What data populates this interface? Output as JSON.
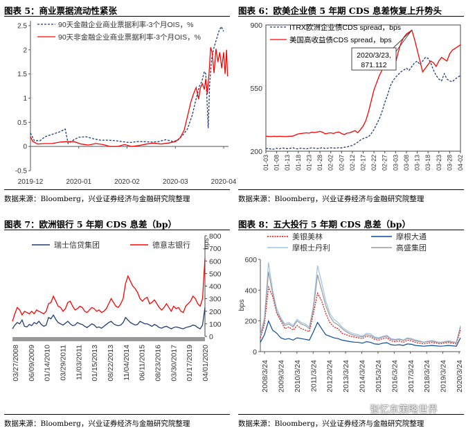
{
  "panels": {
    "p5": {
      "title": "图表 5：商业票据流动性紧张",
      "source": "数据来源：Bloomberg，兴业证券经济与金融研究院整理"
    },
    "p6": {
      "title": "图表 6：欧美企业债 5 年期 CDS 息差恢复上升势头",
      "source": "数据来源：Bloomberg，兴业证券经济与金融研究院整理"
    },
    "p7": {
      "title": "图表 7：欧洲银行 5 年期 CDS 息差（bp）",
      "source": "数据来源：Bloomberg，兴业证券经济与金融研究院整理"
    },
    "p8": {
      "title": "图表 8：五大投行 5 年期 CDS 息差（bp）",
      "source": "数据来源：Bloomberg，兴业证券经济与金融研究院整理"
    }
  },
  "watermark": "张忆东策略世界",
  "colors": {
    "red": "#ff0000",
    "navy": "#1f3b73",
    "blue": "#0b4aa0",
    "lightblue": "#9dc3e6",
    "gray": "#9a9a9a",
    "darkred": "#c00000"
  },
  "chart_data": [
    {
      "id": "p5",
      "type": "line",
      "x_ticks": [
        "2019-12",
        "2020-01",
        "2020-02",
        "2020-03",
        "2020-04"
      ],
      "y_ticks": [
        "-0.5",
        "0",
        "0.5",
        "1",
        "1.5",
        "2",
        "2.5"
      ],
      "ylim": [
        -0.5,
        2.6
      ],
      "xlim": [
        0,
        4.1
      ],
      "series": [
        {
          "name": "90天金融企业商业票据利率-3个月OIS，%",
          "color": "#1f3b73",
          "dash": true,
          "points": [
            [
              0,
              0.28
            ],
            [
              0.08,
              0.12
            ],
            [
              0.2,
              0.12
            ],
            [
              0.3,
              0.2
            ],
            [
              0.45,
              0.25
            ],
            [
              0.6,
              0.3
            ],
            [
              0.72,
              0.36
            ],
            [
              0.78,
              0.06
            ],
            [
              0.9,
              0.14
            ],
            [
              1.0,
              0.19
            ],
            [
              1.15,
              0.2
            ],
            [
              1.3,
              0.16
            ],
            [
              1.45,
              0.13
            ],
            [
              1.6,
              0.13
            ],
            [
              1.75,
              0.12
            ],
            [
              1.9,
              0.1
            ],
            [
              2.05,
              0.08
            ],
            [
              2.2,
              0.1
            ],
            [
              2.35,
              0.1
            ],
            [
              2.5,
              0.09
            ],
            [
              2.65,
              0.1
            ],
            [
              2.8,
              0.14
            ],
            [
              2.95,
              0.1
            ],
            [
              3.05,
              0.13
            ],
            [
              3.15,
              0.23
            ],
            [
              3.25,
              0.36
            ],
            [
              3.35,
              0.65
            ],
            [
              3.42,
              0.95
            ],
            [
              3.5,
              1.25
            ],
            [
              3.55,
              1.35
            ],
            [
              3.6,
              1.55
            ],
            [
              3.63,
              1.5
            ],
            [
              3.66,
              0.85
            ],
            [
              3.68,
              0.38
            ],
            [
              3.71,
              1.3
            ],
            [
              3.75,
              1.8
            ],
            [
              3.8,
              2.05
            ],
            [
              3.86,
              2.25
            ],
            [
              3.9,
              2.38
            ],
            [
              3.95,
              2.48
            ],
            [
              4.0,
              2.38
            ]
          ]
        },
        {
          "name": "90天非金融企业商业票据利率-3个月OIS，%",
          "color": "#ff0000",
          "dash": false,
          "points": [
            [
              0,
              0.2
            ],
            [
              0.05,
              0.1
            ],
            [
              0.15,
              0.05
            ],
            [
              0.3,
              0.06
            ],
            [
              0.45,
              0.06
            ],
            [
              0.6,
              0.09
            ],
            [
              0.75,
              0.1
            ],
            [
              0.9,
              0.1
            ],
            [
              1.05,
              0.05
            ],
            [
              1.2,
              0.03
            ],
            [
              1.35,
              0.06
            ],
            [
              1.5,
              0.04
            ],
            [
              1.65,
              0.0
            ],
            [
              1.8,
              0.0
            ],
            [
              1.95,
              0.04
            ],
            [
              2.1,
              0.0
            ],
            [
              2.25,
              0.02
            ],
            [
              2.4,
              0.05
            ],
            [
              2.55,
              0.07
            ],
            [
              2.7,
              0.05
            ],
            [
              2.85,
              0.07
            ],
            [
              3.0,
              0.1
            ],
            [
              3.1,
              0.18
            ],
            [
              3.18,
              0.33
            ],
            [
              3.25,
              0.62
            ],
            [
              3.32,
              0.92
            ],
            [
              3.38,
              1.1
            ],
            [
              3.43,
              1.22
            ],
            [
              3.48,
              0.98
            ],
            [
              3.52,
              1.22
            ],
            [
              3.56,
              1.3
            ],
            [
              3.6,
              1.18
            ],
            [
              3.63,
              1.4
            ],
            [
              3.66,
              1.08
            ],
            [
              3.7,
              1.55
            ],
            [
              3.73,
              2.05
            ],
            [
              3.76,
              1.95
            ],
            [
              3.8,
              1.52
            ],
            [
              3.84,
              2.02
            ],
            [
              3.88,
              1.75
            ],
            [
              3.92,
              1.95
            ],
            [
              3.96,
              1.62
            ],
            [
              4.0,
              1.95
            ],
            [
              4.03,
              1.5
            ],
            [
              4.06,
              2.0
            ],
            [
              4.08,
              1.45
            ]
          ]
        }
      ]
    },
    {
      "id": "p6",
      "type": "line",
      "x_labels": [
        "01-03",
        "01-08",
        "01-13",
        "01-18",
        "01-23",
        "01-28",
        "02-02",
        "02-07",
        "02-12",
        "02-17",
        "02-22",
        "02-27",
        "03-03",
        "03-08",
        "03-13",
        "03-18",
        "03-23",
        "03-28",
        "04-02"
      ],
      "y_ticks": [
        "200",
        "550",
        "900"
      ],
      "ylim": [
        200,
        900
      ],
      "annotation": {
        "text": [
          "2020/3/23,",
          "871.112"
        ],
        "date": "03-23",
        "value": 871.112
      },
      "series": [
        {
          "name": "ITRX欧洲企业债CDS spread，bps",
          "color": "#1f3b73",
          "dash": true,
          "values": [
            213,
            217,
            210,
            212,
            216,
            213,
            218,
            216,
            214,
            216,
            219,
            214,
            213,
            217,
            215,
            213,
            216,
            219,
            217,
            215,
            216,
            220,
            214,
            217,
            219,
            218,
            216,
            220,
            218,
            222,
            224,
            228,
            232,
            240,
            250,
            262,
            270,
            275,
            280,
            298,
            320,
            350,
            380,
            420,
            470,
            510,
            560,
            590,
            610,
            625,
            640,
            650,
            660,
            648,
            670,
            690,
            700,
            680,
            700,
            720,
            715,
            690,
            650,
            620,
            600,
            590,
            630,
            600,
            590,
            585,
            600,
            610,
            620
          ]
        },
        {
          "name": "美国高收益债CDS spread，bps",
          "color": "#ff0000",
          "dash": false,
          "values": [
            283,
            282,
            281,
            283,
            281,
            283,
            282,
            281,
            282,
            283,
            284,
            290,
            296,
            298,
            300,
            302,
            300,
            305,
            303,
            306,
            310,
            305,
            296,
            300,
            302,
            298,
            304,
            306,
            298,
            292,
            300,
            302,
            308,
            314,
            302,
            320,
            340,
            370,
            420,
            480,
            540,
            580,
            620,
            650,
            700,
            680,
            715,
            720,
            690,
            750,
            800,
            830,
            850,
            860,
            871,
            820,
            760,
            700,
            640,
            660,
            680,
            700,
            690,
            670,
            700,
            720,
            710,
            700,
            740,
            760,
            770,
            780,
            790
          ]
        }
      ]
    },
    {
      "id": "p7",
      "type": "line",
      "x_labels": [
        "03/27/2008",
        "06/09/2009",
        "01/14/2010",
        "03/29/2011",
        "11/03/2011",
        "01/15/2013",
        "08/22/2013",
        "11/04/2014",
        "06/11/2015",
        "08/23/2016",
        "03/30/2017",
        "01/17/2019",
        "04/01/2020"
      ],
      "y_ticks": [
        "0",
        "100",
        "200",
        "300",
        "400",
        "500",
        "600",
        "700",
        "800"
      ],
      "y_unit": "bps",
      "ylim": [
        0,
        800
      ],
      "series": [
        {
          "name": "瑞士信贷集团",
          "color": "#1f3b73",
          "values": [
            60,
            90,
            110,
            100,
            130,
            80,
            75,
            95,
            85,
            110,
            100,
            120,
            95,
            80,
            90,
            150,
            140,
            170,
            135,
            110,
            100,
            90,
            105,
            120,
            100,
            85,
            90,
            110,
            100,
            95,
            80,
            70,
            85,
            100,
            90,
            70,
            75,
            65,
            80,
            95,
            110,
            120,
            100,
            90,
            85,
            90,
            110,
            150,
            130,
            110,
            100,
            90,
            95,
            120,
            110,
            100,
            100,
            90,
            80,
            95,
            85,
            70,
            65,
            75,
            80,
            70,
            60,
            70,
            75,
            70,
            65,
            60,
            70,
            75,
            80,
            90,
            85,
            70,
            60,
            90,
            230
          ]
        },
        {
          "name": "德意志银行",
          "color": "#ff0000",
          "values": [
            120,
            180,
            230,
            210,
            170,
            200,
            190,
            180,
            200,
            180,
            210,
            200,
            190,
            180,
            200,
            260,
            270,
            320,
            280,
            240,
            230,
            200,
            220,
            270,
            280,
            240,
            210,
            220,
            240,
            230,
            200,
            190,
            210,
            230,
            220,
            200,
            210,
            190,
            200,
            220,
            260,
            300,
            270,
            240,
            230,
            260,
            300,
            420,
            480,
            440,
            400,
            380,
            350,
            300,
            280,
            300,
            310,
            260,
            270,
            290,
            260,
            230,
            210,
            230,
            260,
            230,
            200,
            240,
            220,
            230,
            200,
            190,
            240,
            260,
            280,
            320,
            300,
            260,
            240,
            300,
            620
          ]
        }
      ]
    },
    {
      "id": "p8",
      "type": "line",
      "x_labels": [
        "2008/3/24",
        "2009/3/24",
        "2010/3/24",
        "2011/3/24",
        "2012/3/24",
        "2013/3/24",
        "2014/3/24",
        "2015/3/24",
        "2016/3/24",
        "2017/3/24",
        "2018/3/24",
        "2019/3/24",
        "2020/3/24"
      ],
      "y_ticks": [
        "0",
        "200",
        "400",
        "600"
      ],
      "y_unit": "bps",
      "ylim": [
        0,
        600
      ],
      "series": [
        {
          "name": "美银美林",
          "color": "#ff0000",
          "dash": true,
          "values": [
            90,
            180,
            420,
            360,
            250,
            200,
            150,
            160,
            140,
            170,
            150,
            140,
            130,
            250,
            380,
            330,
            250,
            190,
            160,
            150,
            120,
            110,
            100,
            95,
            90,
            85,
            100,
            95,
            80,
            75,
            85,
            90,
            70,
            65,
            70,
            60,
            75,
            70,
            60,
            55,
            50,
            55,
            60,
            55,
            50,
            55,
            60,
            55,
            50,
            140
          ]
        },
        {
          "name": "摩根大通",
          "color": "#0b4aa0",
          "dash": false,
          "values": [
            60,
            110,
            200,
            140,
            120,
            90,
            80,
            85,
            75,
            90,
            85,
            80,
            75,
            130,
            190,
            150,
            110,
            100,
            90,
            85,
            75,
            70,
            65,
            62,
            60,
            55,
            65,
            60,
            50,
            48,
            55,
            58,
            45,
            42,
            45,
            40,
            50,
            48,
            40,
            38,
            35,
            38,
            40,
            38,
            35,
            37,
            40,
            38,
            35,
            90
          ]
        },
        {
          "name": "摩根士丹利",
          "color": "#9dc3e6",
          "dash": false,
          "values": [
            110,
            220,
            580,
            400,
            280,
            220,
            180,
            190,
            170,
            210,
            190,
            180,
            160,
            300,
            560,
            450,
            330,
            250,
            210,
            190,
            160,
            140,
            125,
            115,
            110,
            100,
            120,
            115,
            95,
            90,
            100,
            105,
            85,
            80,
            85,
            75,
            90,
            85,
            75,
            70,
            62,
            68,
            72,
            66,
            60,
            65,
            70,
            65,
            60,
            170
          ]
        },
        {
          "name": "高盛集团",
          "color": "#9a9a9a",
          "dash": false,
          "values": [
            100,
            200,
            520,
            380,
            260,
            210,
            170,
            180,
            160,
            200,
            180,
            170,
            150,
            280,
            500,
            400,
            300,
            230,
            190,
            175,
            150,
            130,
            115,
            105,
            100,
            95,
            110,
            105,
            90,
            85,
            95,
            100,
            80,
            75,
            80,
            72,
            85,
            80,
            70,
            66,
            60,
            64,
            68,
            62,
            58,
            62,
            66,
            62,
            58,
            160
          ]
        }
      ]
    }
  ]
}
